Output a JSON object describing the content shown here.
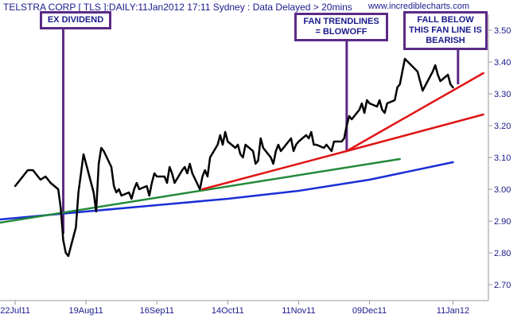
{
  "header": {
    "title": "TELSTRA CORP [ TLS ]:DAILY:11Jan2012 17:11 Sydney : Data Delayed > 20mins",
    "source": "www.incrediblecharts.com"
  },
  "annotations": [
    {
      "text": "EX DIVIDEND",
      "x": "2011-08-10"
    },
    {
      "text": "FAN TRENDLINES = BLOWOFF",
      "x": "2011-11-30"
    },
    {
      "text": "FALL BELOW THIS FAN LINE IS BEARISH",
      "x": "2012-01-13"
    }
  ],
  "colors": {
    "background": "#ffffff",
    "axis": "#9a9a9a",
    "label": "#1a1a8c",
    "price": "#000000",
    "moving_average": "#1a2ed6",
    "trend_green": "#238a3a",
    "trend_red": "#e01414",
    "note_border": "#5b2a86"
  },
  "chart_data": {
    "type": "line",
    "title": "TELSTRA CORP [ TLS ]:DAILY:11Jan2012 17:11 Sydney : Data Delayed > 20mins",
    "xlabel": "",
    "ylabel": "",
    "x_range": [
      "2011-07-16",
      "2012-01-25"
    ],
    "ylim": [
      2.65,
      3.55
    ],
    "y_ticks": [
      2.7,
      2.8,
      2.9,
      3.0,
      3.1,
      3.2,
      3.3,
      3.4,
      3.5
    ],
    "y_tick_labels": [
      "2.70",
      "2.80",
      "2.90",
      "3.00",
      "3.10",
      "3.20",
      "3.30",
      "3.40",
      "3.50"
    ],
    "x_ticks": [
      "2011-07-22",
      "2011-08-19",
      "2011-09-16",
      "2011-10-14",
      "2011-11-11",
      "2011-12-09",
      "2012-01-11"
    ],
    "x_tick_labels": [
      "22Jul11",
      "19Aug11",
      "16Sep11",
      "14Oct11",
      "11Nov11",
      "09Dec11",
      "11Jan12"
    ],
    "grid": false,
    "series": [
      {
        "kind": "price",
        "points": [
          [
            "2011-07-22",
            3.01
          ],
          [
            "2011-07-25",
            3.04
          ],
          [
            "2011-07-27",
            3.06
          ],
          [
            "2011-07-29",
            3.06
          ],
          [
            "2011-08-01",
            3.03
          ],
          [
            "2011-08-03",
            3.04
          ],
          [
            "2011-08-05",
            3.02
          ],
          [
            "2011-08-08",
            3.0
          ],
          [
            "2011-08-09",
            2.94
          ],
          [
            "2011-08-10",
            2.84
          ],
          [
            "2011-08-11",
            2.8
          ],
          [
            "2011-08-12",
            2.79
          ],
          [
            "2011-08-15",
            2.88
          ],
          [
            "2011-08-16",
            2.99
          ],
          [
            "2011-08-17",
            3.05
          ],
          [
            "2011-08-18",
            3.11
          ],
          [
            "2011-08-19",
            3.08
          ],
          [
            "2011-08-22",
            2.99
          ],
          [
            "2011-08-23",
            2.93
          ],
          [
            "2011-08-24",
            3.08
          ],
          [
            "2011-08-25",
            3.13
          ],
          [
            "2011-08-26",
            3.12
          ],
          [
            "2011-08-29",
            3.07
          ],
          [
            "2011-08-30",
            3.01
          ],
          [
            "2011-08-31",
            2.99
          ],
          [
            "2011-09-01",
            3.0
          ],
          [
            "2011-09-02",
            2.98
          ],
          [
            "2011-09-05",
            2.99
          ],
          [
            "2011-09-06",
            2.97
          ],
          [
            "2011-09-07",
            3.0
          ],
          [
            "2011-09-08",
            3.02
          ],
          [
            "2011-09-09",
            3.0
          ],
          [
            "2011-09-12",
            3.01
          ],
          [
            "2011-09-13",
            2.98
          ],
          [
            "2011-09-14",
            3.02
          ],
          [
            "2011-09-15",
            3.05
          ],
          [
            "2011-09-16",
            3.04
          ],
          [
            "2011-09-19",
            3.04
          ],
          [
            "2011-09-20",
            3.02
          ],
          [
            "2011-09-21",
            3.07
          ],
          [
            "2011-09-22",
            3.05
          ],
          [
            "2011-09-23",
            3.02
          ],
          [
            "2011-09-26",
            3.06
          ],
          [
            "2011-09-27",
            3.07
          ],
          [
            "2011-09-28",
            3.05
          ],
          [
            "2011-09-29",
            3.08
          ],
          [
            "2011-09-30",
            3.05
          ],
          [
            "2011-10-03",
            3.0
          ],
          [
            "2011-10-04",
            3.04
          ],
          [
            "2011-10-05",
            3.06
          ],
          [
            "2011-10-06",
            3.04
          ],
          [
            "2011-10-07",
            3.1
          ],
          [
            "2011-10-10",
            3.14
          ],
          [
            "2011-10-11",
            3.17
          ],
          [
            "2011-10-12",
            3.14
          ],
          [
            "2011-10-13",
            3.18
          ],
          [
            "2011-10-14",
            3.15
          ],
          [
            "2011-10-17",
            3.13
          ],
          [
            "2011-10-18",
            3.14
          ],
          [
            "2011-10-19",
            3.11
          ],
          [
            "2011-10-20",
            3.1
          ],
          [
            "2011-10-21",
            3.14
          ],
          [
            "2011-10-24",
            3.12
          ],
          [
            "2011-10-25",
            3.08
          ],
          [
            "2011-10-26",
            3.09
          ],
          [
            "2011-10-27",
            3.16
          ],
          [
            "2011-10-28",
            3.13
          ],
          [
            "2011-10-31",
            3.1
          ],
          [
            "2011-11-01",
            3.08
          ],
          [
            "2011-11-02",
            3.12
          ],
          [
            "2011-11-03",
            3.14
          ],
          [
            "2011-11-04",
            3.12
          ],
          [
            "2011-11-07",
            3.15
          ],
          [
            "2011-11-08",
            3.16
          ],
          [
            "2011-11-09",
            3.12
          ],
          [
            "2011-11-10",
            3.14
          ],
          [
            "2011-11-11",
            3.15
          ],
          [
            "2011-11-14",
            3.17
          ],
          [
            "2011-11-15",
            3.16
          ],
          [
            "2011-11-16",
            3.18
          ],
          [
            "2011-11-17",
            3.14
          ],
          [
            "2011-11-18",
            3.14
          ],
          [
            "2011-11-21",
            3.13
          ],
          [
            "2011-11-22",
            3.14
          ],
          [
            "2011-11-23",
            3.13
          ],
          [
            "2011-11-24",
            3.12
          ],
          [
            "2011-11-25",
            3.15
          ],
          [
            "2011-11-28",
            3.15
          ],
          [
            "2011-11-29",
            3.16
          ],
          [
            "2011-11-30",
            3.2
          ],
          [
            "2011-12-01",
            3.23
          ],
          [
            "2011-12-02",
            3.22
          ],
          [
            "2011-12-05",
            3.25
          ],
          [
            "2011-12-06",
            3.27
          ],
          [
            "2011-12-07",
            3.24
          ],
          [
            "2011-12-08",
            3.28
          ],
          [
            "2011-12-09",
            3.27
          ],
          [
            "2011-12-12",
            3.26
          ],
          [
            "2011-12-13",
            3.28
          ],
          [
            "2011-12-14",
            3.25
          ],
          [
            "2011-12-15",
            3.24
          ],
          [
            "2011-12-16",
            3.27
          ],
          [
            "2011-12-19",
            3.28
          ],
          [
            "2011-12-20",
            3.32
          ],
          [
            "2011-12-21",
            3.33
          ],
          [
            "2011-12-22",
            3.37
          ],
          [
            "2011-12-23",
            3.41
          ],
          [
            "2011-12-28",
            3.37
          ],
          [
            "2011-12-29",
            3.34
          ],
          [
            "2011-12-30",
            3.31
          ],
          [
            "2012-01-03",
            3.37
          ],
          [
            "2012-01-04",
            3.39
          ],
          [
            "2012-01-05",
            3.36
          ],
          [
            "2012-01-06",
            3.34
          ],
          [
            "2012-01-09",
            3.36
          ],
          [
            "2012-01-10",
            3.33
          ],
          [
            "2012-01-11",
            3.32
          ]
        ]
      },
      {
        "kind": "moving_average",
        "points": [
          [
            "2011-07-16",
            2.905
          ],
          [
            "2011-08-19",
            2.93
          ],
          [
            "2011-09-16",
            2.95
          ],
          [
            "2011-10-14",
            2.97
          ],
          [
            "2011-11-11",
            2.995
          ],
          [
            "2011-12-09",
            3.03
          ],
          [
            "2012-01-11",
            3.085
          ]
        ]
      },
      {
        "kind": "trend_green",
        "points": [
          [
            "2011-07-16",
            2.895
          ],
          [
            "2011-12-21",
            3.095
          ]
        ]
      },
      {
        "kind": "trend_red",
        "points": [
          [
            "2011-10-04",
            3.0
          ],
          [
            "2011-11-30",
            3.12
          ],
          [
            "2012-01-23",
            3.365
          ]
        ]
      },
      {
        "kind": "trend_red",
        "points": [
          [
            "2011-11-30",
            3.12
          ],
          [
            "2012-01-23",
            3.235
          ]
        ]
      }
    ]
  }
}
